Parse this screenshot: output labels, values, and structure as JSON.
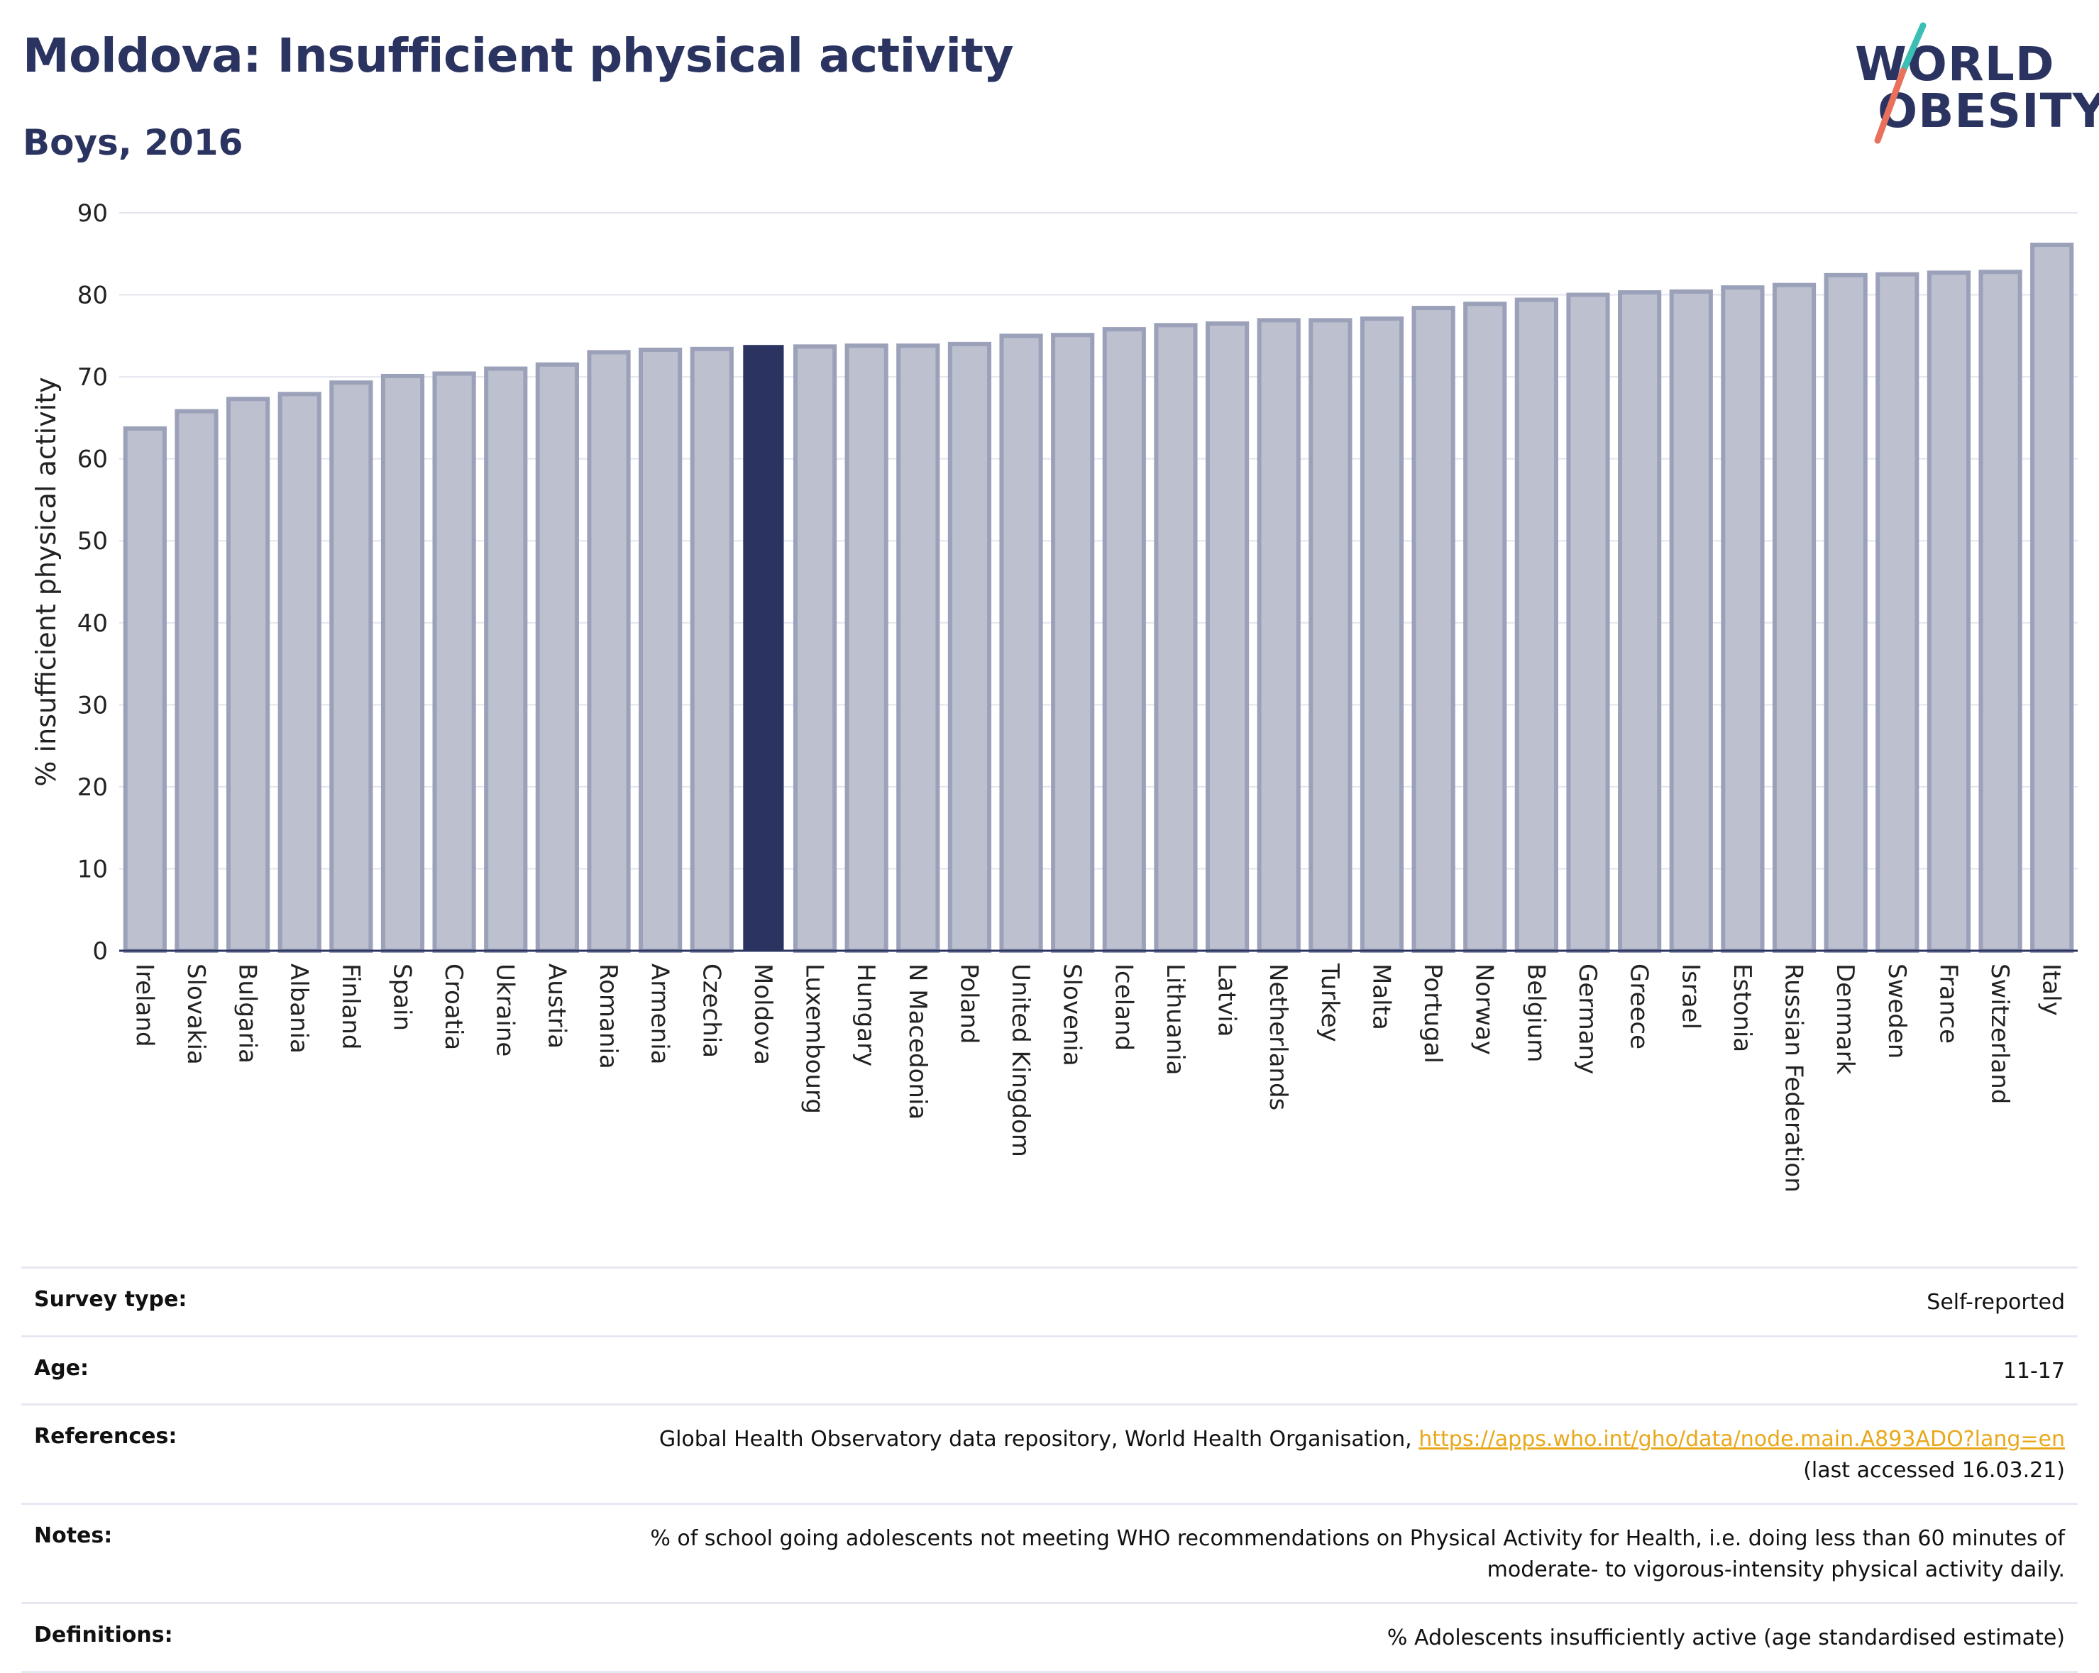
{
  "header": {
    "title": "Moldova: Insufficient physical activity",
    "subtitle": "Boys, 2016",
    "logo_line1": "WORLD",
    "logo_line2": "OBESITY"
  },
  "colors": {
    "highlight": "#2b3460",
    "bar_fill": "#bcc0cf",
    "bar_stroke": "#9ba1b9",
    "title": "#2b3460",
    "link": "#e8a81b",
    "logo_teal": "#3bbfb5",
    "logo_coral": "#e8705c"
  },
  "chart_data": {
    "type": "bar",
    "highlight": "Moldova",
    "ylabel": "% insufficient physical activity",
    "xlabel": "",
    "ylim": [
      0,
      90
    ],
    "yticks": [
      0,
      10,
      20,
      30,
      40,
      50,
      60,
      70,
      80,
      90
    ],
    "grid": true,
    "categories": [
      "Ireland",
      "Slovakia",
      "Bulgaria",
      "Albania",
      "Finland",
      "Spain",
      "Croatia",
      "Ukraine",
      "Austria",
      "Romania",
      "Armenia",
      "Czechia",
      "Moldova",
      "Luxembourg",
      "Hungary",
      "N Macedonia",
      "Poland",
      "United Kingdom",
      "Slovenia",
      "Iceland",
      "Lithuania",
      "Latvia",
      "Netherlands",
      "Turkey",
      "Malta",
      "Portugal",
      "Norway",
      "Belgium",
      "Germany",
      "Greece",
      "Israel",
      "Estonia",
      "Russian Federation",
      "Denmark",
      "Sweden",
      "France",
      "Switzerland",
      "Italy"
    ],
    "values": [
      63.7,
      65.8,
      67.3,
      67.9,
      69.3,
      70.1,
      70.4,
      71.0,
      71.5,
      73.0,
      73.3,
      73.4,
      73.8,
      73.7,
      73.8,
      73.8,
      74.0,
      75.0,
      75.1,
      75.8,
      76.3,
      76.5,
      76.9,
      76.9,
      77.1,
      78.4,
      78.9,
      79.4,
      80.0,
      80.3,
      80.4,
      80.9,
      81.2,
      82.4,
      82.5,
      82.7,
      82.8,
      86.1
    ]
  },
  "info": {
    "survey_label": "Survey type:",
    "survey_value": "Self-reported",
    "age_label": "Age:",
    "age_value": "11-17",
    "references_label": "References:",
    "references_text": "Global Health Observatory data repository, World Health Organisation,",
    "references_link": "https://apps.who.int/gho/data/node.main.A893ADO?lang=en",
    "references_accessed": "(last accessed 16.03.21)",
    "notes_label": "Notes:",
    "notes_line1": "% of school going adolescents not meeting WHO recommendations on Physical Activity for Health, i.e. doing less than 60 minutes of",
    "notes_line2": "moderate- to vigorous-intensity physical activity daily.",
    "definitions_label": "Definitions:",
    "definitions_value": "% Adolescents insufficiently active (age standardised estimate)"
  }
}
